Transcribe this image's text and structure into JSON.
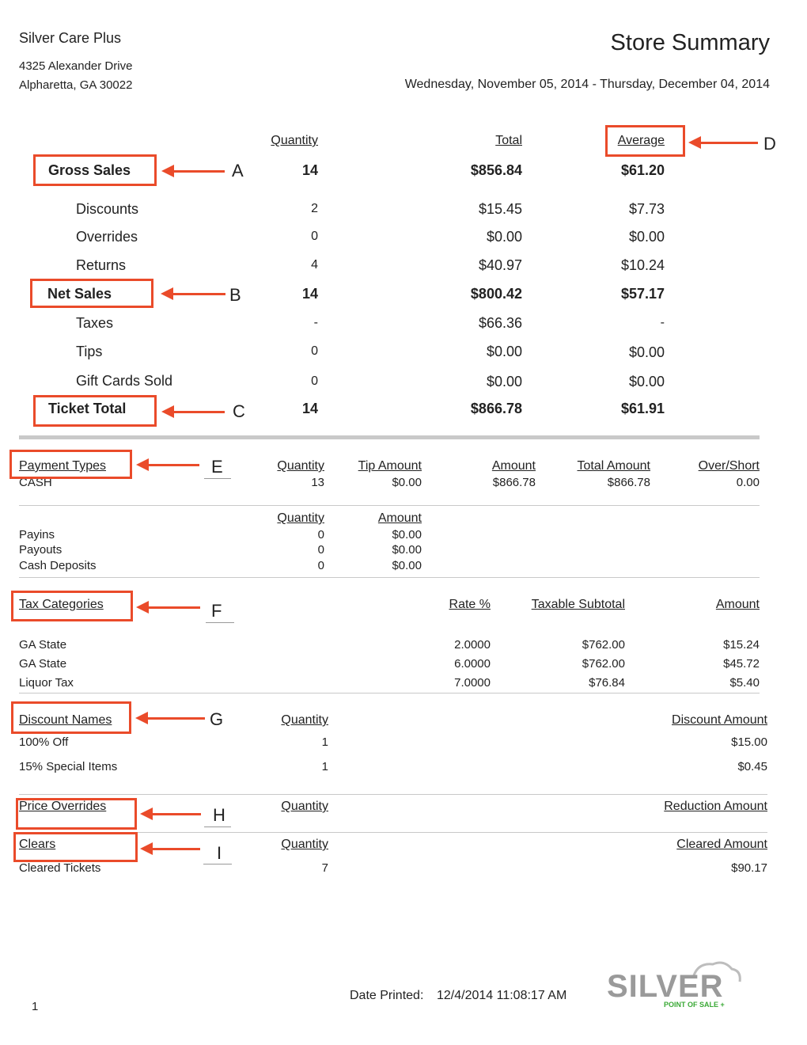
{
  "header": {
    "company": "Silver Care Plus",
    "address1": "4325 Alexander Drive",
    "address2": "Alpharetta, GA 30022",
    "title": "Store Summary",
    "date_range": "Wednesday, November 05, 2014 - Thursday, December 04, 2014"
  },
  "summary": {
    "col_quantity": "Quantity",
    "col_total": "Total",
    "col_average": "Average",
    "rows": [
      {
        "label": "Gross Sales",
        "qty": "14",
        "total": "$856.84",
        "avg": "$61.20"
      },
      {
        "label": "Discounts",
        "qty": "2",
        "total": "$15.45",
        "avg": "$7.73"
      },
      {
        "label": "Overrides",
        "qty": "0",
        "total": "$0.00",
        "avg": "$0.00"
      },
      {
        "label": "Returns",
        "qty": "4",
        "total": "$40.97",
        "avg": "$10.24"
      },
      {
        "label": "Net Sales",
        "qty": "14",
        "total": "$800.42",
        "avg": "$57.17"
      },
      {
        "label": "Taxes",
        "qty": "-",
        "total": "$66.36",
        "avg": "-"
      },
      {
        "label": "Tips",
        "qty": "0",
        "total": "$0.00",
        "avg": "$0.00"
      },
      {
        "label": "Gift Cards Sold",
        "qty": "0",
        "total": "$0.00",
        "avg": "$0.00"
      },
      {
        "label": "Ticket Total",
        "qty": "14",
        "total": "$866.78",
        "avg": "$61.91"
      }
    ]
  },
  "payment_types": {
    "title": "Payment Types",
    "col_quantity": "Quantity",
    "col_tip": "Tip Amount",
    "col_amount": "Amount",
    "col_total": "Total Amount",
    "col_overshort": "Over/Short",
    "rows": [
      {
        "name": "CASH",
        "qty": "13",
        "tip": "$0.00",
        "amount": "$866.78",
        "total": "$866.78",
        "overshort": "0.00"
      }
    ]
  },
  "payins": {
    "col_quantity": "Quantity",
    "col_amount": "Amount",
    "rows": [
      {
        "name": "Payins",
        "qty": "0",
        "amount": "$0.00"
      },
      {
        "name": "Payouts",
        "qty": "0",
        "amount": "$0.00"
      },
      {
        "name": "Cash Deposits",
        "qty": "0",
        "amount": "$0.00"
      }
    ]
  },
  "tax_categories": {
    "title": "Tax Categories",
    "col_rate": "Rate %",
    "col_taxable": "Taxable Subtotal",
    "col_amount": "Amount",
    "rows": [
      {
        "name": "GA State",
        "rate": "2.0000",
        "taxable": "$762.00",
        "amount": "$15.24"
      },
      {
        "name": "GA State",
        "rate": "6.0000",
        "taxable": "$762.00",
        "amount": "$45.72"
      },
      {
        "name": "Liquor Tax",
        "rate": "7.0000",
        "taxable": "$76.84",
        "amount": "$5.40"
      }
    ]
  },
  "discount_names": {
    "title": "Discount Names",
    "col_quantity": "Quantity",
    "col_amount": "Discount Amount",
    "rows": [
      {
        "name": "100% Off",
        "qty": "1",
        "amount": "$15.00"
      },
      {
        "name": "15% Special Items",
        "qty": "1",
        "amount": "$0.45"
      }
    ]
  },
  "price_overrides": {
    "title": "Price Overrides",
    "col_quantity": "Quantity",
    "col_amount": "Reduction Amount"
  },
  "clears": {
    "title": "Clears",
    "col_quantity": "Quantity",
    "col_amount": "Cleared Amount",
    "rows": [
      {
        "name": "Cleared Tickets",
        "qty": "7",
        "amount": "$90.17"
      }
    ]
  },
  "annotations": [
    "A",
    "B",
    "C",
    "D",
    "E",
    "F",
    "G",
    "H",
    "I"
  ],
  "footer": {
    "page": "1",
    "printed_label": "Date Printed:",
    "printed_value": "12/4/2014 11:08:17 AM",
    "logo_text": "SILVER",
    "logo_sub": "POINT OF SALE +"
  },
  "colors": {
    "annotation": "#ea4b2a",
    "logo_gray": "#9a9a9a",
    "logo_green": "#3aa935"
  }
}
